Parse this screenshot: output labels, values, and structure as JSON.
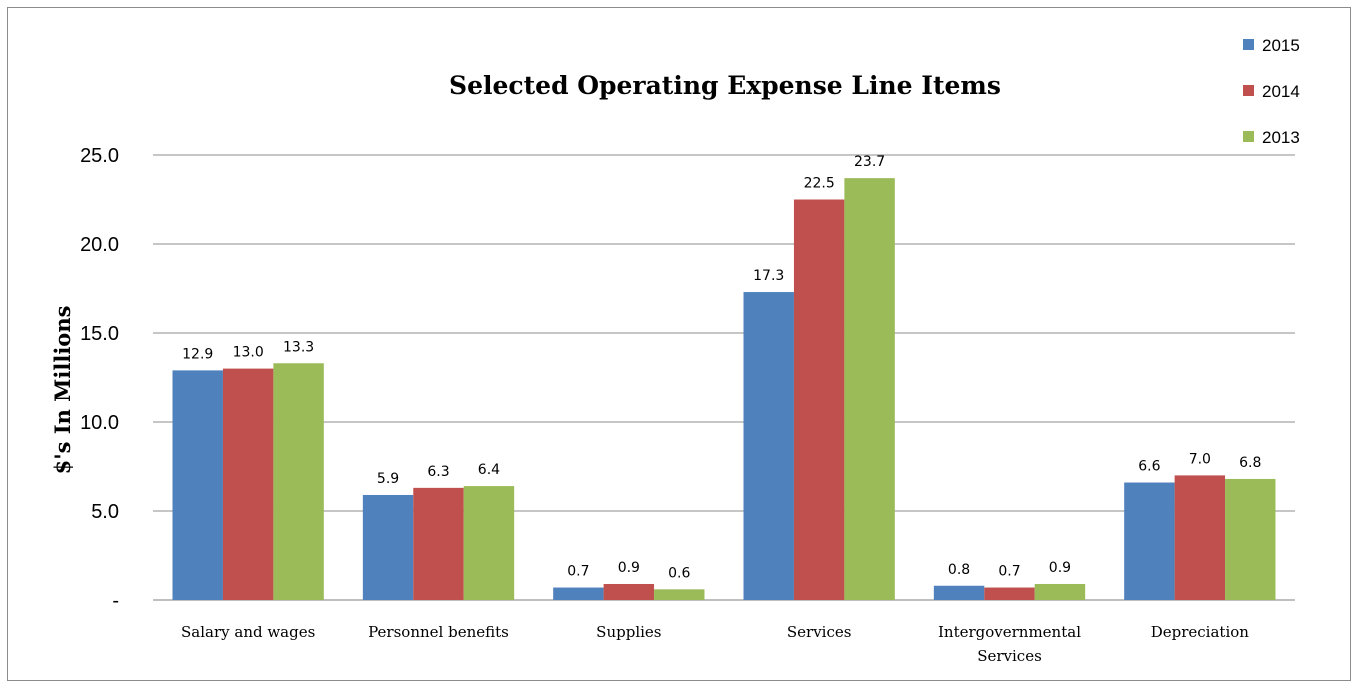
{
  "chart_data": {
    "type": "bar",
    "title": "Selected Operating Expense Line Items",
    "ylabel": "$'s In Millions",
    "xlabel": "",
    "ylim": [
      0,
      25
    ],
    "yticks": [
      {
        "value": 0,
        "label": "-"
      },
      {
        "value": 5,
        "label": "5.0"
      },
      {
        "value": 10,
        "label": "10.0"
      },
      {
        "value": 15,
        "label": "15.0"
      },
      {
        "value": 20,
        "label": "20.0"
      },
      {
        "value": 25,
        "label": "25.0"
      }
    ],
    "grid": true,
    "legend_position": "top-right",
    "categories": [
      [
        "Salary and wages"
      ],
      [
        "Personnel benefits"
      ],
      [
        "Supplies"
      ],
      [
        "Services"
      ],
      [
        "Intergovernmental",
        "Services"
      ],
      [
        "Depreciation"
      ]
    ],
    "series": [
      {
        "name": "2015",
        "color": "#4f81bd",
        "values": [
          12.9,
          5.9,
          0.7,
          17.3,
          0.8,
          6.6
        ],
        "labels": [
          "12.9",
          "5.9",
          "0.7",
          "17.3",
          "0.8",
          "6.6"
        ]
      },
      {
        "name": "2014",
        "color": "#c0504d",
        "values": [
          13.0,
          6.3,
          0.9,
          22.5,
          0.7,
          7.0
        ],
        "labels": [
          "13.0",
          "6.3",
          "0.9",
          "22.5",
          "0.7",
          "7.0"
        ]
      },
      {
        "name": "2013",
        "color": "#9bbb59",
        "values": [
          13.3,
          6.4,
          0.6,
          23.7,
          0.9,
          6.8
        ],
        "labels": [
          "13.3",
          "6.4",
          "0.6",
          "23.7",
          "0.9",
          "6.8"
        ]
      }
    ]
  }
}
